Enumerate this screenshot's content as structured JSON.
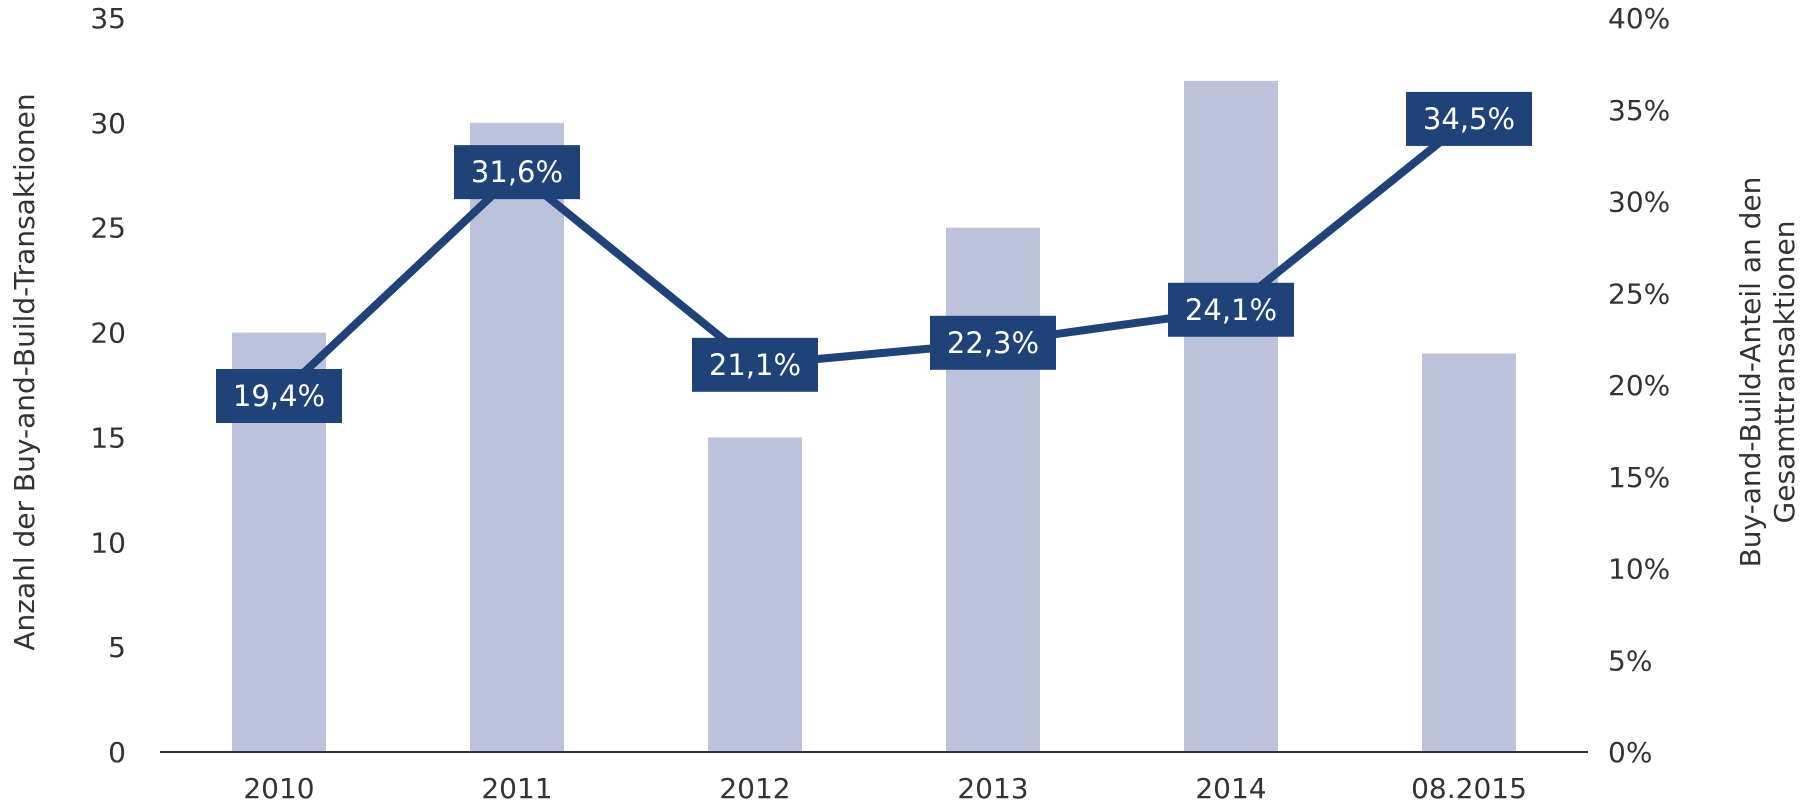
{
  "chart_data": {
    "type": "bar",
    "categories": [
      "2010",
      "2011",
      "2012",
      "2013",
      "2014",
      "08.2015"
    ],
    "series": [
      {
        "type": "bar",
        "axis": "left",
        "values": [
          20,
          30,
          15,
          25,
          32,
          19
        ]
      },
      {
        "type": "line",
        "axis": "right",
        "values": [
          19.4,
          31.6,
          21.1,
          22.3,
          24.1,
          34.5
        ],
        "data_labels": [
          "19,4%",
          "31,6%",
          "21,1%",
          "22,3%",
          "24,1%",
          "34,5%"
        ]
      }
    ],
    "ylabel": "Anzahl der Buy-and-Build-Transaktionen",
    "y2label_lines": [
      "Buy-and-Build-Anteil an den",
      "Gesamttransaktionen"
    ],
    "ylim": [
      0,
      35
    ],
    "yticks": [
      0,
      5,
      10,
      15,
      20,
      25,
      30,
      35
    ],
    "y2lim": [
      0,
      40
    ],
    "y2ticks": [
      "0%",
      "5%",
      "10%",
      "15%",
      "20%",
      "25%",
      "30%",
      "35%",
      "40%"
    ],
    "grid": false,
    "legend": "none",
    "colors": {
      "bar": "#bcc2dc",
      "line": "#1f4278",
      "label_bg": "#1f4278",
      "label_text": "#ffffff",
      "axis": "#333333"
    }
  }
}
